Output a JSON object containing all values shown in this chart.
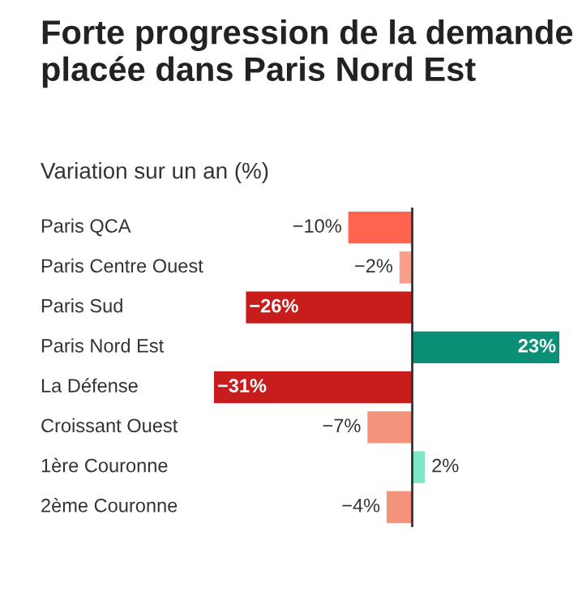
{
  "chart_data": {
    "type": "bar",
    "orientation": "horizontal",
    "title": "Forte progression de la demande placée dans Paris Nord Est",
    "subtitle": "Variation sur un an (%)",
    "categories": [
      "Paris QCA",
      "Paris Centre Ouest",
      "Paris Sud",
      "Paris Nord Est",
      "La Défense",
      "Croissant Ouest",
      "1ère Couronne",
      "2ème Couronne"
    ],
    "values": [
      -10,
      -2,
      -26,
      23,
      -31,
      -7,
      2,
      -4
    ],
    "colors": [
      "#ff6450",
      "#f9a08c",
      "#c71e1d",
      "#0c8f77",
      "#c71e1d",
      "#f4937c",
      "#7fe6c8",
      "#f4937c"
    ],
    "value_labels": [
      "−10%",
      "−2%",
      "−26%",
      "23%",
      "−31%",
      "−7%",
      "2%",
      "−4%"
    ]
  }
}
